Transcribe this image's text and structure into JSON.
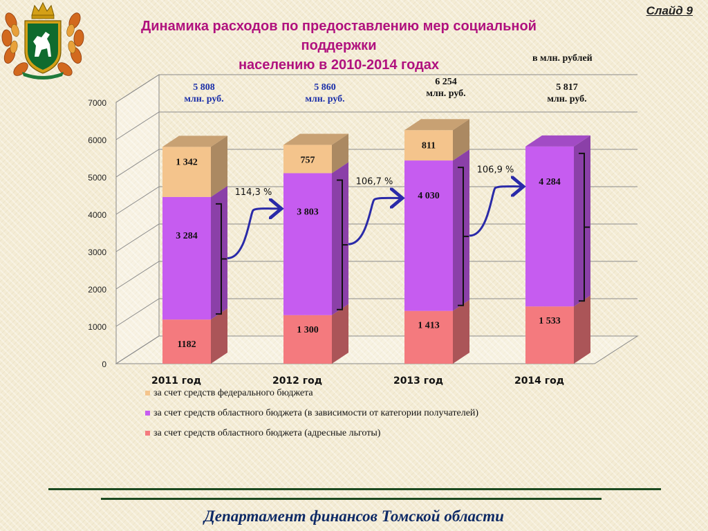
{
  "header": {
    "slide_label": "Слайд 9",
    "title_line1": "Динамика расходов по предоставлению мер социальной поддержки",
    "title_line2": "населению  в 2010-2014 годах",
    "unit_note": "в млн. рублей"
  },
  "emblem": {
    "icon": "tomsk-coat-of-arms-icon"
  },
  "chart_data": {
    "type": "bar",
    "stacked": true,
    "three_d": true,
    "categories": [
      "2011 год",
      "2012 год",
      "2013 год",
      "2014 год"
    ],
    "series": [
      {
        "name": "за счет средств областного бюджета (адресные льготы)",
        "values": [
          1182,
          1300,
          1413,
          1533
        ],
        "labels": [
          "1182",
          "1 300",
          "1 413",
          "1 533"
        ],
        "color": "#f47a7e"
      },
      {
        "name": "за счет средств областного бюджета (в зависимости от категории получателей)",
        "values": [
          3284,
          3803,
          4030,
          4284
        ],
        "labels": [
          "3 284",
          "3 803",
          "4 030",
          "4 284"
        ],
        "color": "#c65cf0"
      },
      {
        "name": "за счет средств федерального бюджета",
        "values": [
          1342,
          757,
          811,
          0
        ],
        "labels": [
          "1 342",
          "757",
          "811",
          ""
        ],
        "color": "#f4c48c"
      }
    ],
    "totals": [
      {
        "value": "5 808",
        "unit": "млн. руб."
      },
      {
        "value": "5 860",
        "unit": "млн. руб."
      },
      {
        "value": "6 254",
        "unit": "млн. руб."
      },
      {
        "value": "5 817",
        "unit": "млн. руб."
      }
    ],
    "growth": [
      {
        "from": "2011 год",
        "to": "2012 год",
        "label": "114,3 %"
      },
      {
        "from": "2012 год",
        "to": "2013 год",
        "label": "106,7 %"
      },
      {
        "from": "2013 год",
        "to": "2014 год",
        "label": "106,9 %"
      }
    ],
    "ylim": [
      0,
      7000
    ],
    "yticks": [
      "0",
      "1000",
      "2000",
      "3000",
      "4000",
      "5000",
      "6000",
      "7000"
    ],
    "grid": true,
    "legend_position": "bottom",
    "legend_order": [
      2,
      1,
      0
    ]
  },
  "footer": {
    "text": "Департамент финансов Томской области"
  }
}
